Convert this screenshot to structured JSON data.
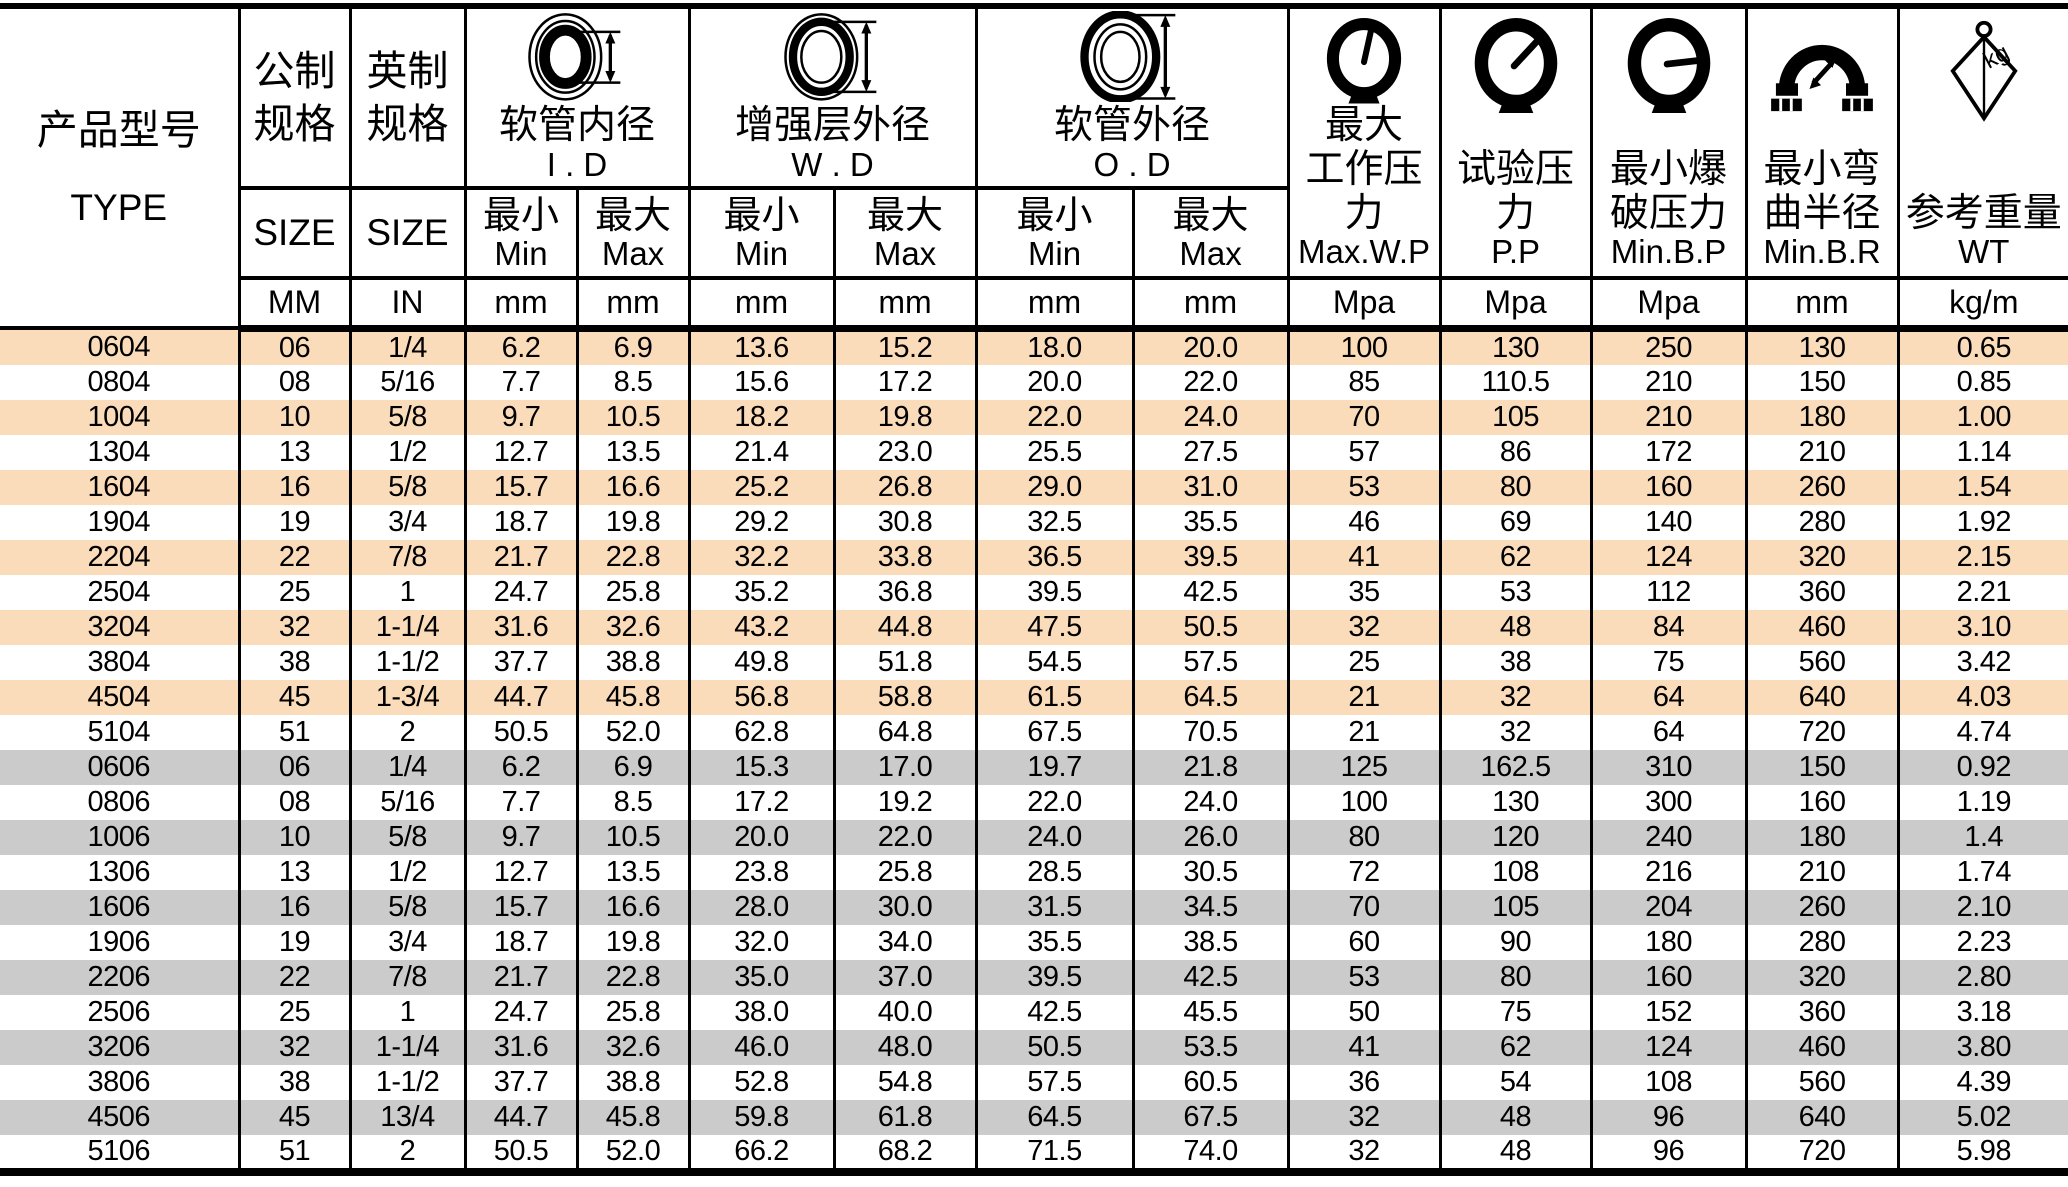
{
  "colors": {
    "stripe_peach": "#FADCBA",
    "stripe_gray": "#CBCBCB",
    "border": "#000000",
    "background": "#FFFFFF"
  },
  "icons": {
    "id_icon": "hose-inner-diameter-icon",
    "wd_icon": "reinforcement-outer-diameter-icon",
    "od_icon": "hose-outer-diameter-icon",
    "max_wp_icon": "pressure-gauge-icon",
    "pp_icon": "pressure-gauge-icon",
    "min_bp_icon": "pressure-gauge-icon",
    "min_br_icon": "bent-hose-icon",
    "wt_icon": "weight-icon",
    "weight_label": "kg"
  },
  "col_keys": [
    "type",
    "size_mm",
    "size_in",
    "id_min",
    "id_max",
    "wd_min",
    "wd_max",
    "od_min",
    "od_max",
    "max_wp",
    "pp",
    "min_bp",
    "min_br",
    "wt"
  ],
  "header": {
    "type": {
      "zh": "产品型号",
      "en": "TYPE"
    },
    "metric": {
      "zh1": "公制",
      "zh2": "规格",
      "size": "SIZE"
    },
    "imperial": {
      "zh1": "英制",
      "zh2": "规格",
      "size": "SIZE"
    },
    "id": {
      "zh": "软管内径",
      "en": "I . D"
    },
    "wd": {
      "zh": "增强层外径",
      "en": "W . D"
    },
    "od": {
      "zh": "软管外径",
      "en": "O . D"
    },
    "minmax": {
      "min_zh": "最小",
      "min_en": "Min",
      "max_zh": "最大",
      "max_en": "Max"
    },
    "max_wp": {
      "zh1": "最大",
      "zh2": "工作压力",
      "en": "Max.W.P"
    },
    "pp": {
      "zh1": "试验压力",
      "en": "P.P"
    },
    "min_bp": {
      "zh1": "最小爆",
      "zh2": "破压力",
      "en": "Min.B.P"
    },
    "min_br": {
      "zh1": "最小弯",
      "zh2": "曲半径",
      "en": "Min.B.R"
    },
    "wt": {
      "zh1": "参考重量",
      "en": "WT"
    },
    "units": [
      "MM",
      "IN",
      "mm",
      "mm",
      "mm",
      "mm",
      "mm",
      "mm",
      "Mpa",
      "Mpa",
      "Mpa",
      "mm",
      "kg/m"
    ]
  },
  "rows": [
    {
      "stripe": "peach",
      "cells": [
        "0604",
        "06",
        "1/4",
        "6.2",
        "6.9",
        "13.6",
        "15.2",
        "18.0",
        "20.0",
        "100",
        "130",
        "250",
        "130",
        "0.65"
      ]
    },
    {
      "stripe": "",
      "cells": [
        "0804",
        "08",
        "5/16",
        "7.7",
        "8.5",
        "15.6",
        "17.2",
        "20.0",
        "22.0",
        "85",
        "110.5",
        "210",
        "150",
        "0.85"
      ]
    },
    {
      "stripe": "peach",
      "cells": [
        "1004",
        "10",
        "5/8",
        "9.7",
        "10.5",
        "18.2",
        "19.8",
        "22.0",
        "24.0",
        "70",
        "105",
        "210",
        "180",
        "1.00"
      ]
    },
    {
      "stripe": "",
      "cells": [
        "1304",
        "13",
        "1/2",
        "12.7",
        "13.5",
        "21.4",
        "23.0",
        "25.5",
        "27.5",
        "57",
        "86",
        "172",
        "210",
        "1.14"
      ]
    },
    {
      "stripe": "peach",
      "cells": [
        "1604",
        "16",
        "5/8",
        "15.7",
        "16.6",
        "25.2",
        "26.8",
        "29.0",
        "31.0",
        "53",
        "80",
        "160",
        "260",
        "1.54"
      ]
    },
    {
      "stripe": "",
      "cells": [
        "1904",
        "19",
        "3/4",
        "18.7",
        "19.8",
        "29.2",
        "30.8",
        "32.5",
        "35.5",
        "46",
        "69",
        "140",
        "280",
        "1.92"
      ]
    },
    {
      "stripe": "peach",
      "cells": [
        "2204",
        "22",
        "7/8",
        "21.7",
        "22.8",
        "32.2",
        "33.8",
        "36.5",
        "39.5",
        "41",
        "62",
        "124",
        "320",
        "2.15"
      ]
    },
    {
      "stripe": "",
      "cells": [
        "2504",
        "25",
        "1",
        "24.7",
        "25.8",
        "35.2",
        "36.8",
        "39.5",
        "42.5",
        "35",
        "53",
        "112",
        "360",
        "2.21"
      ]
    },
    {
      "stripe": "peach",
      "cells": [
        "3204",
        "32",
        "1-1/4",
        "31.6",
        "32.6",
        "43.2",
        "44.8",
        "47.5",
        "50.5",
        "32",
        "48",
        "84",
        "460",
        "3.10"
      ]
    },
    {
      "stripe": "",
      "cells": [
        "3804",
        "38",
        "1-1/2",
        "37.7",
        "38.8",
        "49.8",
        "51.8",
        "54.5",
        "57.5",
        "25",
        "38",
        "75",
        "560",
        "3.42"
      ]
    },
    {
      "stripe": "peach",
      "cells": [
        "4504",
        "45",
        "1-3/4",
        "44.7",
        "45.8",
        "56.8",
        "58.8",
        "61.5",
        "64.5",
        "21",
        "32",
        "64",
        "640",
        "4.03"
      ]
    },
    {
      "stripe": "",
      "cells": [
        "5104",
        "51",
        "2",
        "50.5",
        "52.0",
        "62.8",
        "64.8",
        "67.5",
        "70.5",
        "21",
        "32",
        "64",
        "720",
        "4.74"
      ]
    },
    {
      "stripe": "gray",
      "cells": [
        "0606",
        "06",
        "1/4",
        "6.2",
        "6.9",
        "15.3",
        "17.0",
        "19.7",
        "21.8",
        "125",
        "162.5",
        "310",
        "150",
        "0.92"
      ]
    },
    {
      "stripe": "",
      "cells": [
        "0806",
        "08",
        "5/16",
        "7.7",
        "8.5",
        "17.2",
        "19.2",
        "22.0",
        "24.0",
        "100",
        "130",
        "300",
        "160",
        "1.19"
      ]
    },
    {
      "stripe": "gray",
      "cells": [
        "1006",
        "10",
        "5/8",
        "9.7",
        "10.5",
        "20.0",
        "22.0",
        "24.0",
        "26.0",
        "80",
        "120",
        "240",
        "180",
        "1.4"
      ]
    },
    {
      "stripe": "",
      "cells": [
        "1306",
        "13",
        "1/2",
        "12.7",
        "13.5",
        "23.8",
        "25.8",
        "28.5",
        "30.5",
        "72",
        "108",
        "216",
        "210",
        "1.74"
      ]
    },
    {
      "stripe": "gray",
      "cells": [
        "1606",
        "16",
        "5/8",
        "15.7",
        "16.6",
        "28.0",
        "30.0",
        "31.5",
        "34.5",
        "70",
        "105",
        "204",
        "260",
        "2.10"
      ]
    },
    {
      "stripe": "",
      "cells": [
        "1906",
        "19",
        "3/4",
        "18.7",
        "19.8",
        "32.0",
        "34.0",
        "35.5",
        "38.5",
        "60",
        "90",
        "180",
        "280",
        "2.23"
      ]
    },
    {
      "stripe": "gray",
      "cells": [
        "2206",
        "22",
        "7/8",
        "21.7",
        "22.8",
        "35.0",
        "37.0",
        "39.5",
        "42.5",
        "53",
        "80",
        "160",
        "320",
        "2.80"
      ]
    },
    {
      "stripe": "",
      "cells": [
        "2506",
        "25",
        "1",
        "24.7",
        "25.8",
        "38.0",
        "40.0",
        "42.5",
        "45.5",
        "50",
        "75",
        "152",
        "360",
        "3.18"
      ]
    },
    {
      "stripe": "gray",
      "cells": [
        "3206",
        "32",
        "1-1/4",
        "31.6",
        "32.6",
        "46.0",
        "48.0",
        "50.5",
        "53.5",
        "41",
        "62",
        "124",
        "460",
        "3.80"
      ]
    },
    {
      "stripe": "",
      "cells": [
        "3806",
        "38",
        "1-1/2",
        "37.7",
        "38.8",
        "52.8",
        "54.8",
        "57.5",
        "60.5",
        "36",
        "54",
        "108",
        "560",
        "4.39"
      ]
    },
    {
      "stripe": "gray",
      "cells": [
        "4506",
        "45",
        "13/4",
        "44.7",
        "45.8",
        "59.8",
        "61.8",
        "64.5",
        "67.5",
        "32",
        "48",
        "96",
        "640",
        "5.02"
      ]
    },
    {
      "stripe": "",
      "cells": [
        "5106",
        "51",
        "2",
        "50.5",
        "52.0",
        "66.2",
        "68.2",
        "71.5",
        "74.0",
        "32",
        "48",
        "96",
        "720",
        "5.98"
      ]
    }
  ]
}
